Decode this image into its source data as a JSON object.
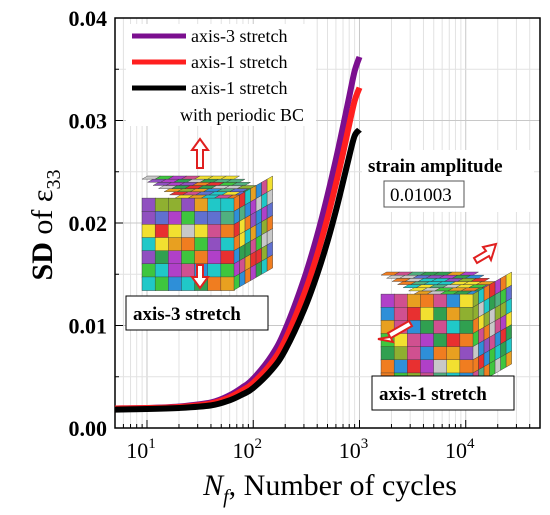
{
  "chart_data": {
    "type": "line",
    "xscale": "log",
    "xlim": [
      5,
      50000
    ],
    "ylim": [
      0,
      0.04
    ],
    "yticks": [
      "0.00",
      "0.01",
      "0.02",
      "0.03",
      "0.04"
    ],
    "xticks": [
      {
        "base": "10",
        "exp": "1",
        "value": 10
      },
      {
        "base": "10",
        "exp": "2",
        "value": 100
      },
      {
        "base": "10",
        "exp": "3",
        "value": 1000
      },
      {
        "base": "10",
        "exp": "4",
        "value": 10000
      }
    ],
    "ylabel": {
      "prefix": "SD",
      "mid": " of ε",
      "sub": "33"
    },
    "xlabel": {
      "sym": "N",
      "sub": "f",
      "rest": ", Number of cycles"
    },
    "grid": true,
    "legend_position": "top-left",
    "series": [
      {
        "name": "axis-3 stretch",
        "color": "#7b0f8f",
        "width": 6,
        "x": [
          5,
          10,
          20,
          40,
          60,
          80,
          100,
          150,
          200,
          300,
          400,
          500,
          600,
          700,
          800,
          900,
          1000
        ],
        "y": [
          0.0019,
          0.00195,
          0.0021,
          0.0025,
          0.0032,
          0.004,
          0.0048,
          0.0071,
          0.0096,
          0.0145,
          0.0188,
          0.0227,
          0.0262,
          0.0294,
          0.0323,
          0.0348,
          0.0362
        ]
      },
      {
        "name": "axis-1 stretch",
        "color": "#ff1f1f",
        "width": 6,
        "x": [
          5,
          10,
          20,
          40,
          60,
          80,
          100,
          150,
          200,
          300,
          400,
          500,
          600,
          700,
          800,
          900,
          1000
        ],
        "y": [
          0.0019,
          0.00195,
          0.00205,
          0.0024,
          0.003,
          0.0037,
          0.0044,
          0.0064,
          0.0086,
          0.013,
          0.0169,
          0.0205,
          0.0238,
          0.0268,
          0.0296,
          0.0319,
          0.0332
        ]
      },
      {
        "name": "axis-1 stretch",
        "name2": "with periodic BC",
        "color": "#000000",
        "width": 6,
        "x": [
          5,
          10,
          20,
          40,
          60,
          80,
          100,
          150,
          200,
          300,
          400,
          500,
          600,
          700,
          800,
          900,
          1000
        ],
        "y": [
          0.0018,
          0.00185,
          0.00195,
          0.0022,
          0.0027,
          0.0033,
          0.0039,
          0.0057,
          0.0076,
          0.0115,
          0.015,
          0.0182,
          0.0212,
          0.024,
          0.0265,
          0.0285,
          0.0291
        ]
      }
    ],
    "annotations": {
      "strain_title": "strain amplitude",
      "strain_value": "0.01003",
      "label_axis3": "axis-3 stretch",
      "label_axis1": "axis-1 stretch"
    }
  },
  "colors": {
    "grain_palette": [
      "#2e8fd8",
      "#f2e030",
      "#3ec63e",
      "#e83030",
      "#b040c8",
      "#20c8c8",
      "#f07d20",
      "#8fb030",
      "#d05090",
      "#6070d0",
      "#e8a020",
      "#50b080",
      "#c8c8c8",
      "#9050c0",
      "#30a050"
    ]
  }
}
